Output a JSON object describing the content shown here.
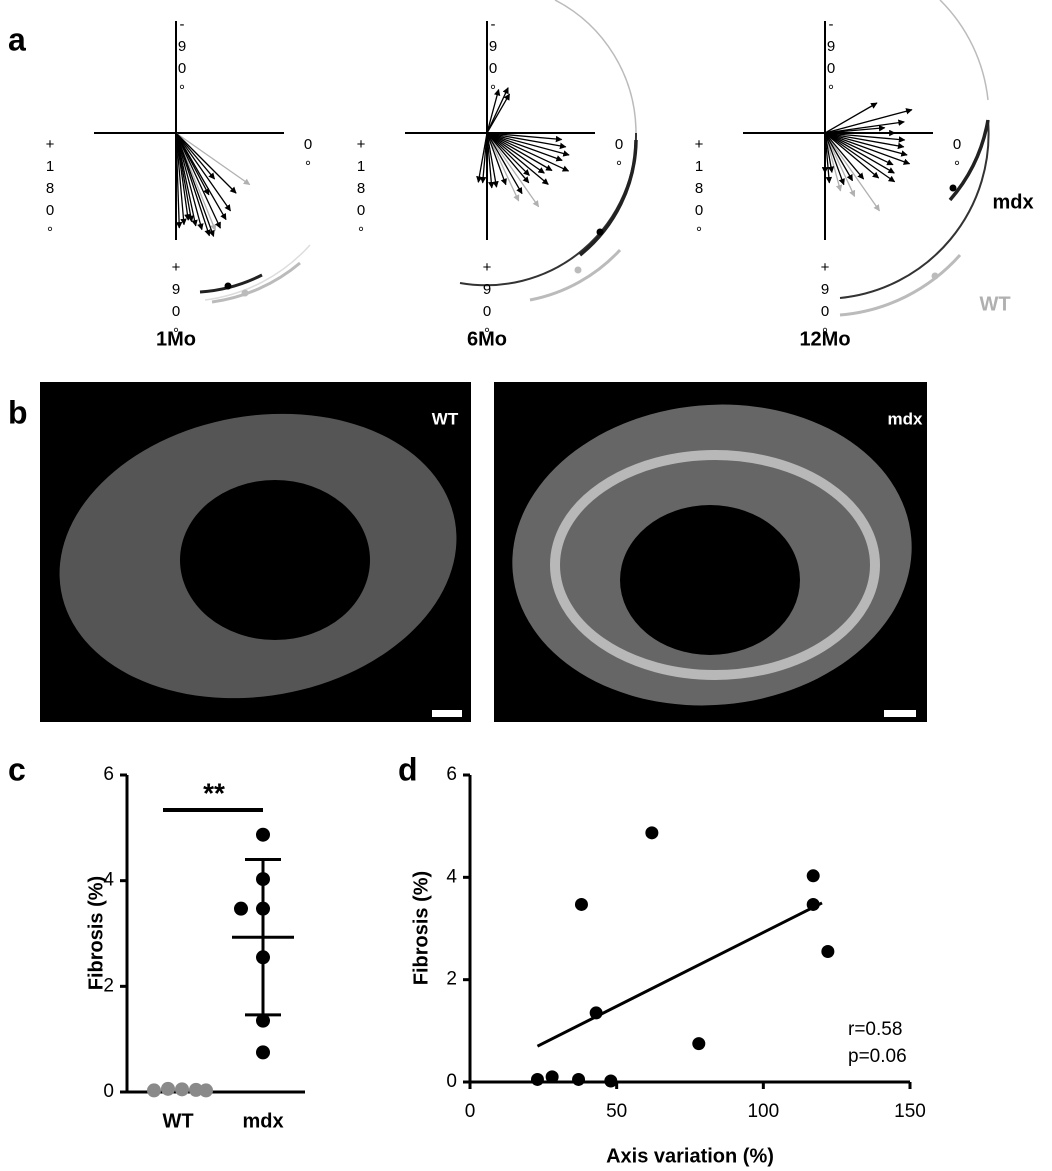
{
  "panel_labels": [
    "a",
    "b",
    "c",
    "d"
  ],
  "orientation_plots": [
    {
      "label": "1Mo",
      "top": "-90°",
      "right": "0°",
      "left": "+180°",
      "bottom": "+90°",
      "mdx_arrows": {
        "color": "#000000",
        "angle": [
          45,
          55,
          60,
          65,
          70,
          72,
          75,
          78,
          80,
          82,
          85,
          88,
          62,
          50
        ],
        "length": [
          85,
          95,
          100,
          105,
          110,
          108,
          100,
          95,
          90,
          88,
          92,
          95,
          70,
          60
        ]
      },
      "wt_arrows": {
        "color": "#b0b0b0",
        "angle": [
          35,
          68
        ],
        "length": [
          90,
          105
        ]
      }
    },
    {
      "label": "6Mo",
      "top": "-90°",
      "right": "0°",
      "left": "+180°",
      "bottom": "+90°",
      "mdx_arrows": {
        "color": "#000000",
        "angle": [
          -75,
          -65,
          -60,
          5,
          10,
          15,
          20,
          25,
          30,
          35,
          40,
          45,
          50,
          60,
          70,
          80,
          85,
          95,
          100
        ],
        "length": [
          45,
          50,
          45,
          75,
          80,
          85,
          80,
          90,
          75,
          70,
          80,
          60,
          65,
          70,
          55,
          55,
          55,
          50,
          50
        ]
      },
      "wt_arrows": {
        "color": "#b0b0b0",
        "angle": [
          55,
          65
        ],
        "length": [
          90,
          75
        ]
      }
    },
    {
      "label": "12Mo",
      "top": "-90°",
      "right": "0°",
      "left": "+180°",
      "bottom": "+90°",
      "mdx_arrows": {
        "color": "#000000",
        "angle": [
          -30,
          -15,
          -8,
          -5,
          0,
          5,
          10,
          15,
          20,
          25,
          30,
          35,
          40,
          50,
          60,
          70,
          80,
          85,
          90
        ],
        "length": [
          60,
          90,
          80,
          60,
          70,
          80,
          80,
          85,
          90,
          75,
          80,
          85,
          70,
          60,
          55,
          55,
          40,
          50,
          40
        ]
      },
      "wt_arrows": {
        "color": "#b0b0b0",
        "angle": [
          55,
          65,
          75
        ],
        "length": [
          95,
          70,
          60
        ]
      },
      "legend": [
        "mdx",
        "WT"
      ]
    }
  ],
  "images": [
    "WT",
    "mdx"
  ],
  "chart_data": [
    {
      "type": "dot",
      "y_label": "Fibrosis (%)",
      "categories": [
        "WT",
        "mdx"
      ],
      "groups": [
        {
          "color": "#8a8a8a",
          "values": [
            0.03,
            0.06,
            0.05,
            0.04,
            0.03
          ]
        },
        {
          "color": "#000000",
          "values": [
            4.87,
            4.03,
            3.47,
            3.47,
            2.55,
            1.35,
            0.75
          ],
          "mean": 2.93,
          "sd": 1.47
        }
      ],
      "significance": "**",
      "ylim": [
        0,
        6
      ],
      "yticks": [
        0,
        2,
        4,
        6
      ]
    },
    {
      "type": "scatter",
      "x_label": "Axis variation (%)",
      "y_label": "Fibrosis (%)",
      "x": [
        23,
        28,
        37,
        38,
        43,
        48,
        62,
        78,
        117,
        117,
        122
      ],
      "values": [
        0.05,
        0.1,
        0.05,
        3.47,
        1.35,
        0.02,
        4.87,
        0.75,
        4.03,
        3.47,
        2.55
      ],
      "color": "#000000",
      "fit": {
        "x": [
          23,
          120
        ],
        "y": [
          0.7,
          3.5
        ]
      },
      "annotations": [
        "r=0.58",
        "p=0.06"
      ],
      "xlim": [
        0,
        150
      ],
      "xticks": [
        0,
        50,
        100,
        150
      ],
      "ylim": [
        0,
        6
      ],
      "yticks": [
        0,
        2,
        4,
        6
      ]
    }
  ]
}
